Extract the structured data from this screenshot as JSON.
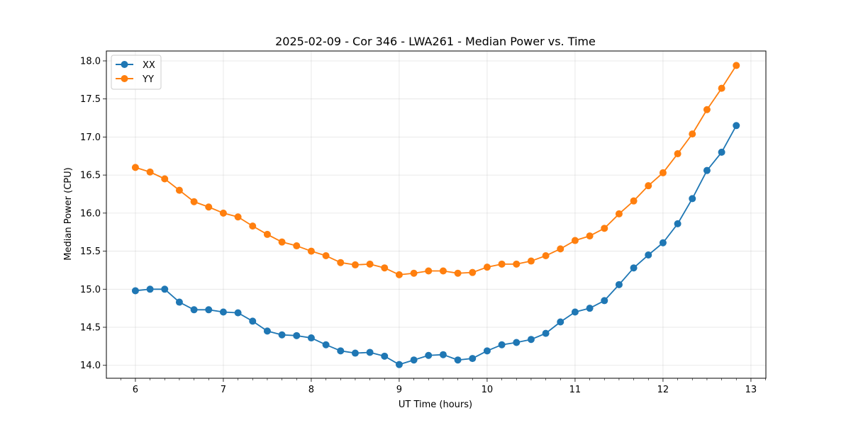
{
  "chart_data": {
    "type": "line",
    "title": "2025-02-09 - Cor 346 - LWA261 - Median Power vs. Time",
    "xlabel": "UT Time (hours)",
    "ylabel": "Median Power (CPU)",
    "xlim": [
      5.67,
      13.17
    ],
    "ylim": [
      13.83,
      18.13
    ],
    "grid": true,
    "legend_position": "top-left",
    "x_ticks": [
      6,
      7,
      8,
      9,
      10,
      11,
      12,
      13
    ],
    "x_tick_labels": [
      "6",
      "7",
      "8",
      "9",
      "10",
      "11",
      "12",
      "13"
    ],
    "y_ticks": [
      14.0,
      14.5,
      15.0,
      15.5,
      16.0,
      16.5,
      17.0,
      17.5,
      18.0
    ],
    "y_tick_labels": [
      "14.0",
      "14.5",
      "15.0",
      "15.5",
      "16.0",
      "16.5",
      "17.0",
      "17.5",
      "18.0"
    ],
    "x": [
      6.0,
      6.1667,
      6.3333,
      6.5,
      6.6667,
      6.8333,
      7.0,
      7.1667,
      7.3333,
      7.5,
      7.6667,
      7.8333,
      8.0,
      8.1667,
      8.3333,
      8.5,
      8.6667,
      8.8333,
      9.0,
      9.1667,
      9.3333,
      9.5,
      9.6667,
      9.8333,
      10.0,
      10.1667,
      10.3333,
      10.5,
      10.6667,
      10.8333,
      11.0,
      11.1667,
      11.3333,
      11.5,
      11.6667,
      11.8333,
      12.0,
      12.1667,
      12.3333,
      12.5,
      12.6667,
      12.8333
    ],
    "series": [
      {
        "name": "XX",
        "color": "#1f77b4",
        "values": [
          14.98,
          15.0,
          15.0,
          14.83,
          14.73,
          14.73,
          14.7,
          14.69,
          14.58,
          14.45,
          14.4,
          14.39,
          14.36,
          14.27,
          14.19,
          14.16,
          14.17,
          14.12,
          14.01,
          14.07,
          14.13,
          14.14,
          14.07,
          14.09,
          14.19,
          14.27,
          14.3,
          14.34,
          14.42,
          14.57,
          14.7,
          14.75,
          14.85,
          15.06,
          15.28,
          15.45,
          15.61,
          15.86,
          16.19,
          16.56,
          16.8,
          17.15
        ]
      },
      {
        "name": "YY",
        "color": "#ff7f0e",
        "values": [
          16.6,
          16.54,
          16.45,
          16.3,
          16.15,
          16.08,
          16.0,
          15.95,
          15.83,
          15.72,
          15.62,
          15.57,
          15.5,
          15.44,
          15.35,
          15.32,
          15.33,
          15.28,
          15.19,
          15.21,
          15.24,
          15.24,
          15.21,
          15.22,
          15.29,
          15.33,
          15.33,
          15.37,
          15.44,
          15.53,
          15.64,
          15.7,
          15.8,
          15.99,
          16.16,
          16.36,
          16.53,
          16.78,
          17.04,
          17.36,
          17.64,
          17.94
        ]
      }
    ]
  }
}
